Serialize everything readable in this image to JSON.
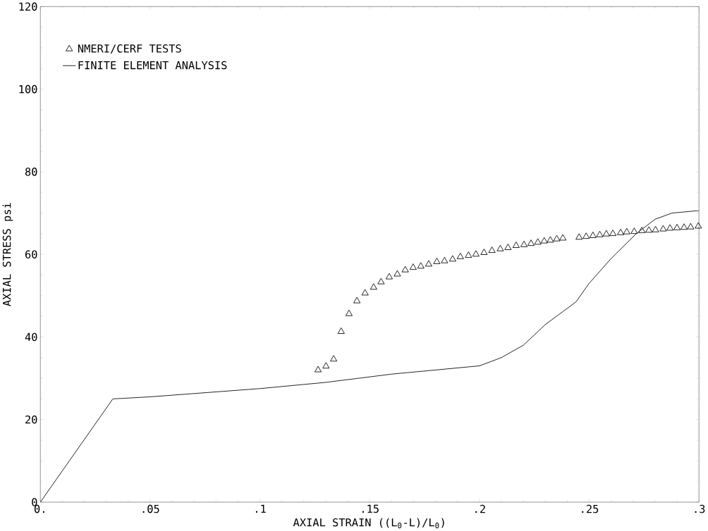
{
  "chart_data": {
    "type": "scatter",
    "xlabel": "AXIAL STRAIN  ((L$_{0}$-L)/L$_{0}$)",
    "ylabel": "AXIAL STRESS   psi",
    "xlim": [
      0,
      0.3
    ],
    "ylim": [
      0,
      120
    ],
    "xticks": [
      {
        "value": 0,
        "label": "0."
      },
      {
        "value": 0.05,
        "label": ".05"
      },
      {
        "value": 0.1,
        "label": ".1"
      },
      {
        "value": 0.15,
        "label": ".15"
      },
      {
        "value": 0.2,
        "label": ".2"
      },
      {
        "value": 0.25,
        "label": ".25"
      },
      {
        "value": 0.3,
        "label": ".3"
      }
    ],
    "yticks": [
      0,
      20,
      40,
      60,
      80,
      100,
      120
    ],
    "legend": "top left",
    "grid": false,
    "series": [
      {
        "name": "NMERI/CERF TESTS",
        "marker": "triangle",
        "color": "#000000",
        "x": [
          0.1265,
          0.1301,
          0.1336,
          0.137,
          0.1406,
          0.1442,
          0.1479,
          0.1518,
          0.1552,
          0.1589,
          0.1626,
          0.1662,
          0.1698,
          0.1733,
          0.1769,
          0.1806,
          0.1841,
          0.1878,
          0.1913,
          0.195,
          0.1984,
          0.2021,
          0.2057,
          0.2095,
          0.213,
          0.2167,
          0.2203,
          0.2235,
          0.2266,
          0.2295,
          0.2323,
          0.2352,
          0.238,
          0.2454,
          0.2486,
          0.2517,
          0.2548,
          0.2578,
          0.2608,
          0.2643,
          0.2671,
          0.2705,
          0.274,
          0.2772,
          0.2802,
          0.2837,
          0.2868,
          0.29,
          0.2932,
          0.2962,
          0.2997
        ],
        "values": [
          32.0,
          32.9,
          34.6,
          41.3,
          45.6,
          48.7,
          50.6,
          52.0,
          53.3,
          54.5,
          55.2,
          56.2,
          56.8,
          57.1,
          57.6,
          58.2,
          58.4,
          58.8,
          59.4,
          59.7,
          60.0,
          60.4,
          60.9,
          61.3,
          61.6,
          62.1,
          62.3,
          62.6,
          62.9,
          63.2,
          63.4,
          63.7,
          63.9,
          64.1,
          64.3,
          64.5,
          64.7,
          64.9,
          65.0,
          65.2,
          65.4,
          65.5,
          65.7,
          65.8,
          65.9,
          66.1,
          66.3,
          66.4,
          66.5,
          66.6,
          66.8
        ]
      },
      {
        "name": "FINITE ELEMENT ANALYSIS",
        "type": "line",
        "marker": "none",
        "line_style": "solid",
        "color": "#000000",
        "x": [
          0,
          0.033,
          0.05,
          0.1,
          0.13,
          0.16,
          0.2,
          0.21,
          0.22,
          0.23,
          0.244,
          0.25,
          0.26,
          0.2716,
          0.28,
          0.2877,
          0.3
        ],
        "values": [
          0,
          25,
          25.5,
          27.5,
          29,
          31,
          33,
          35,
          38,
          43,
          48.5,
          53,
          59,
          65.1,
          68.5,
          70,
          70.6
        ]
      }
    ]
  }
}
